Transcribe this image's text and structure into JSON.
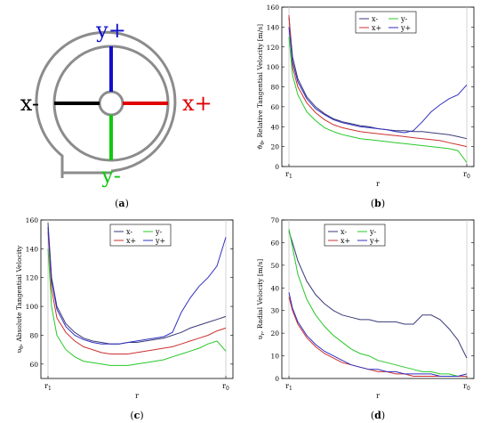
{
  "colors": {
    "x_minus": "#000000",
    "x_plus": "#e00000",
    "y_plus": "#1010cc",
    "y_minus": "#10c810",
    "housing": "#8c8c8c",
    "plot_xminus": "#3a3a78",
    "plot_xplus": "#cc3030",
    "plot_yplus": "#3030c0",
    "plot_yminus": "#28c828"
  },
  "schematic": {
    "labels": {
      "y_plus": "y+",
      "y_minus": "y-",
      "x_minus": "x-",
      "x_plus": "x+"
    },
    "caption": {
      "open": "(",
      "letter": "a",
      "close": ")"
    }
  },
  "chart_data": [
    {
      "panel": "b",
      "type": "line",
      "caption": {
        "open": "(",
        "letter": "b",
        "close": ")"
      },
      "ylabel": "ϑ_θ, Relative Tangential Velocity [m/s]",
      "xlabel": "r",
      "xticks": [
        "r_1",
        "r_0"
      ],
      "xlim": [
        0,
        1
      ],
      "ylim": [
        0,
        160
      ],
      "yticks": [
        0,
        20,
        40,
        60,
        80,
        100,
        120,
        140,
        160
      ],
      "legend": [
        "x-",
        "y-",
        "x+",
        "y+"
      ],
      "series": [
        {
          "name": "x-",
          "color": "#3a3a78",
          "x": [
            0,
            0.02,
            0.05,
            0.1,
            0.15,
            0.2,
            0.25,
            0.3,
            0.35,
            0.4,
            0.45,
            0.5,
            0.55,
            0.6,
            0.65,
            0.7,
            0.75,
            0.8,
            0.85,
            0.9,
            0.95,
            1.0
          ],
          "values": [
            150,
            110,
            88,
            70,
            60,
            53,
            48,
            45,
            43,
            41,
            40,
            38,
            37,
            36,
            36,
            35,
            35,
            34,
            33,
            32,
            30,
            28
          ]
        },
        {
          "name": "y-",
          "color": "#28c828",
          "x": [
            0,
            0.02,
            0.05,
            0.1,
            0.15,
            0.2,
            0.25,
            0.3,
            0.35,
            0.4,
            0.45,
            0.5,
            0.55,
            0.6,
            0.65,
            0.7,
            0.75,
            0.8,
            0.85,
            0.9,
            0.95,
            1.0
          ],
          "values": [
            130,
            92,
            72,
            55,
            46,
            39,
            35,
            32,
            30,
            28,
            27,
            26,
            25,
            24,
            23,
            22,
            21,
            20,
            19,
            18,
            16,
            4
          ]
        },
        {
          "name": "x+",
          "color": "#cc3030",
          "x": [
            0,
            0.02,
            0.05,
            0.1,
            0.15,
            0.2,
            0.25,
            0.3,
            0.35,
            0.4,
            0.45,
            0.5,
            0.55,
            0.6,
            0.65,
            0.7,
            0.75,
            0.8,
            0.85,
            0.9,
            0.95,
            1.0
          ],
          "values": [
            152,
            100,
            80,
            64,
            54,
            47,
            42,
            39,
            37,
            35,
            34,
            33,
            32,
            31,
            30,
            29,
            28,
            27,
            26,
            24,
            22,
            20
          ]
        },
        {
          "name": "y+",
          "color": "#3030c0",
          "x": [
            0,
            0.02,
            0.05,
            0.1,
            0.15,
            0.2,
            0.25,
            0.3,
            0.35,
            0.4,
            0.45,
            0.5,
            0.55,
            0.6,
            0.65,
            0.7,
            0.75,
            0.8,
            0.85,
            0.9,
            0.95,
            1.0
          ],
          "values": [
            140,
            105,
            85,
            68,
            58,
            52,
            47,
            44,
            42,
            40,
            39,
            38,
            37,
            35,
            34,
            36,
            45,
            55,
            62,
            68,
            72,
            82
          ]
        }
      ]
    },
    {
      "panel": "c",
      "type": "line",
      "caption": {
        "open": "(",
        "letter": "c",
        "close": ")"
      },
      "ylabel": "υ_θ, Absolute Tangential Velocity",
      "xlabel": "r",
      "xticks": [
        "r_1",
        "r_0"
      ],
      "xlim": [
        0,
        1
      ],
      "ylim": [
        50,
        160
      ],
      "yticks": [
        60,
        80,
        100,
        120,
        140,
        160
      ],
      "legend": [
        "x-",
        "y-",
        "x+",
        "y+"
      ],
      "series": [
        {
          "name": "x-",
          "color": "#3a3a78",
          "x": [
            0,
            0.02,
            0.05,
            0.1,
            0.15,
            0.2,
            0.25,
            0.3,
            0.35,
            0.4,
            0.45,
            0.5,
            0.55,
            0.6,
            0.65,
            0.7,
            0.75,
            0.8,
            0.85,
            0.9,
            0.95,
            1.0
          ],
          "values": [
            158,
            120,
            100,
            88,
            82,
            78,
            76,
            75,
            74,
            74,
            75,
            75,
            76,
            77,
            78,
            80,
            82,
            85,
            87,
            89,
            91,
            93
          ]
        },
        {
          "name": "y-",
          "color": "#28c828",
          "x": [
            0,
            0.02,
            0.05,
            0.1,
            0.15,
            0.2,
            0.25,
            0.3,
            0.35,
            0.4,
            0.45,
            0.5,
            0.55,
            0.6,
            0.65,
            0.7,
            0.75,
            0.8,
            0.85,
            0.9,
            0.95,
            1.0
          ],
          "values": [
            140,
            100,
            80,
            70,
            65,
            62,
            61,
            60,
            59,
            59,
            59,
            60,
            61,
            62,
            63,
            65,
            67,
            69,
            71,
            74,
            76,
            69
          ]
        },
        {
          "name": "x+",
          "color": "#cc3030",
          "x": [
            0,
            0.02,
            0.05,
            0.1,
            0.15,
            0.2,
            0.25,
            0.3,
            0.35,
            0.4,
            0.45,
            0.5,
            0.55,
            0.6,
            0.65,
            0.7,
            0.75,
            0.8,
            0.85,
            0.9,
            0.95,
            1.0
          ],
          "values": [
            152,
            112,
            92,
            82,
            76,
            72,
            70,
            68,
            67,
            67,
            67,
            68,
            69,
            70,
            71,
            72,
            74,
            76,
            78,
            80,
            83,
            85
          ]
        },
        {
          "name": "y+",
          "color": "#3030c0",
          "x": [
            0,
            0.02,
            0.05,
            0.1,
            0.15,
            0.2,
            0.25,
            0.3,
            0.35,
            0.4,
            0.45,
            0.5,
            0.55,
            0.6,
            0.65,
            0.7,
            0.75,
            0.8,
            0.85,
            0.9,
            0.95,
            1.0
          ],
          "values": [
            155,
            118,
            98,
            86,
            80,
            77,
            75,
            74,
            74,
            74,
            75,
            76,
            77,
            78,
            79,
            82,
            96,
            106,
            114,
            120,
            128,
            148
          ]
        }
      ]
    },
    {
      "panel": "d",
      "type": "line",
      "caption": {
        "open": "(",
        "letter": "d",
        "close": ")"
      },
      "ylabel": "υ_r, Radial Velocity [m/s]",
      "xlabel": "r",
      "xticks": [
        "r_1",
        "r_0"
      ],
      "xlim": [
        0,
        1
      ],
      "ylim": [
        0,
        70
      ],
      "yticks": [
        0,
        10,
        20,
        30,
        40,
        50,
        60,
        70
      ],
      "legend": [
        "x-",
        "y-",
        "x+",
        "y+"
      ],
      "series": [
        {
          "name": "x-",
          "color": "#3a3a78",
          "x": [
            0,
            0.02,
            0.05,
            0.1,
            0.15,
            0.2,
            0.25,
            0.3,
            0.35,
            0.4,
            0.45,
            0.5,
            0.55,
            0.6,
            0.65,
            0.7,
            0.75,
            0.8,
            0.85,
            0.9,
            0.95,
            1.0
          ],
          "values": [
            65,
            60,
            52,
            43,
            37,
            33,
            30,
            28,
            27,
            26,
            26,
            25,
            25,
            25,
            24,
            24,
            28,
            28,
            26,
            22,
            17,
            9
          ]
        },
        {
          "name": "y-",
          "color": "#28c828",
          "x": [
            0,
            0.02,
            0.05,
            0.1,
            0.15,
            0.2,
            0.25,
            0.3,
            0.35,
            0.4,
            0.45,
            0.5,
            0.55,
            0.6,
            0.65,
            0.7,
            0.75,
            0.8,
            0.85,
            0.9,
            0.95,
            1.0
          ],
          "values": [
            66,
            58,
            46,
            35,
            28,
            23,
            19,
            16,
            13,
            11,
            10,
            8,
            7,
            6,
            5,
            4,
            3,
            3,
            2,
            2,
            1,
            1
          ]
        },
        {
          "name": "x+",
          "color": "#cc3030",
          "x": [
            0,
            0.02,
            0.05,
            0.1,
            0.15,
            0.2,
            0.25,
            0.3,
            0.35,
            0.4,
            0.45,
            0.5,
            0.55,
            0.6,
            0.65,
            0.7,
            0.75,
            0.8,
            0.85,
            0.9,
            0.95,
            1.0
          ],
          "values": [
            36,
            30,
            24,
            18,
            14,
            11,
            9,
            7,
            6,
            5,
            4,
            3,
            3,
            2,
            2,
            1,
            1,
            1,
            1,
            1,
            1,
            1
          ]
        },
        {
          "name": "y+",
          "color": "#3030c0",
          "x": [
            0,
            0.02,
            0.05,
            0.1,
            0.15,
            0.2,
            0.25,
            0.3,
            0.35,
            0.4,
            0.45,
            0.5,
            0.55,
            0.6,
            0.65,
            0.7,
            0.75,
            0.8,
            0.85,
            0.9,
            0.95,
            1.0
          ],
          "values": [
            38,
            31,
            25,
            19,
            15,
            12,
            10,
            8,
            6,
            5,
            4,
            4,
            3,
            3,
            2,
            2,
            2,
            2,
            1,
            1,
            1,
            2
          ]
        }
      ]
    }
  ]
}
